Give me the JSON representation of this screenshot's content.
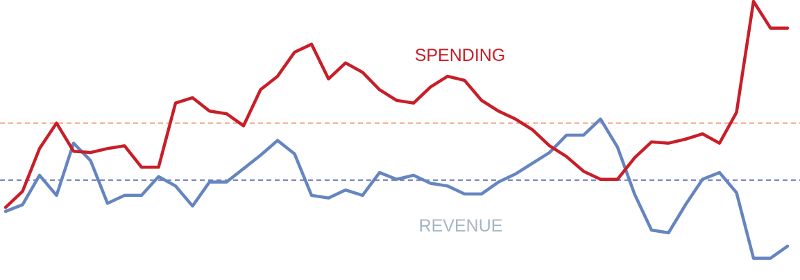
{
  "chart_data": {
    "type": "line",
    "x": [
      1,
      2,
      3,
      4,
      5,
      6,
      7,
      8,
      9,
      10,
      11,
      12,
      13,
      14,
      15,
      16,
      17,
      18,
      19,
      20,
      21,
      22,
      23,
      24,
      25,
      26,
      27,
      28,
      29,
      30,
      31,
      32,
      33,
      34,
      35,
      36,
      37,
      38,
      39,
      40,
      41,
      42,
      43,
      44,
      45,
      46,
      47
    ],
    "ylim": [
      0,
      100
    ],
    "grid": false,
    "reference_lines": [
      {
        "value": 54.5,
        "color": "#f0a080",
        "style": "dashed"
      },
      {
        "value": 33.2,
        "color": "#6b79bf",
        "style": "dashed"
      }
    ],
    "series": [
      {
        "name": "SPENDING",
        "color": "#c81e28",
        "label_color": "#c81e28",
        "values": [
          23,
          29,
          45,
          54.5,
          44,
          43.5,
          45,
          46,
          38,
          38,
          62,
          64,
          59,
          58,
          53.5,
          67,
          72,
          81,
          84,
          71,
          77,
          73.5,
          67,
          63,
          62,
          68,
          72,
          70.5,
          63,
          59,
          56,
          52,
          46,
          42,
          36.5,
          33.5,
          33.5,
          41.5,
          47.5,
          47,
          48.5,
          50.5,
          47,
          58.5,
          100,
          90,
          90
        ]
      },
      {
        "name": "REVENUE",
        "color": "#6585c0",
        "label_color": "#a4b5c3",
        "values": [
          21.5,
          24,
          35,
          27.5,
          47,
          40.5,
          24.5,
          27.5,
          27.5,
          34.5,
          31,
          23.5,
          32.5,
          32.5,
          37.5,
          42.5,
          48,
          43,
          27.5,
          26.5,
          29.5,
          27.5,
          36,
          33.5,
          35,
          32,
          31,
          28,
          28,
          32.5,
          35.5,
          39.5,
          43.5,
          50,
          50,
          56,
          45.5,
          28,
          14.5,
          13.5,
          24,
          33.5,
          36,
          28.5,
          4,
          4,
          8.5
        ]
      }
    ]
  }
}
